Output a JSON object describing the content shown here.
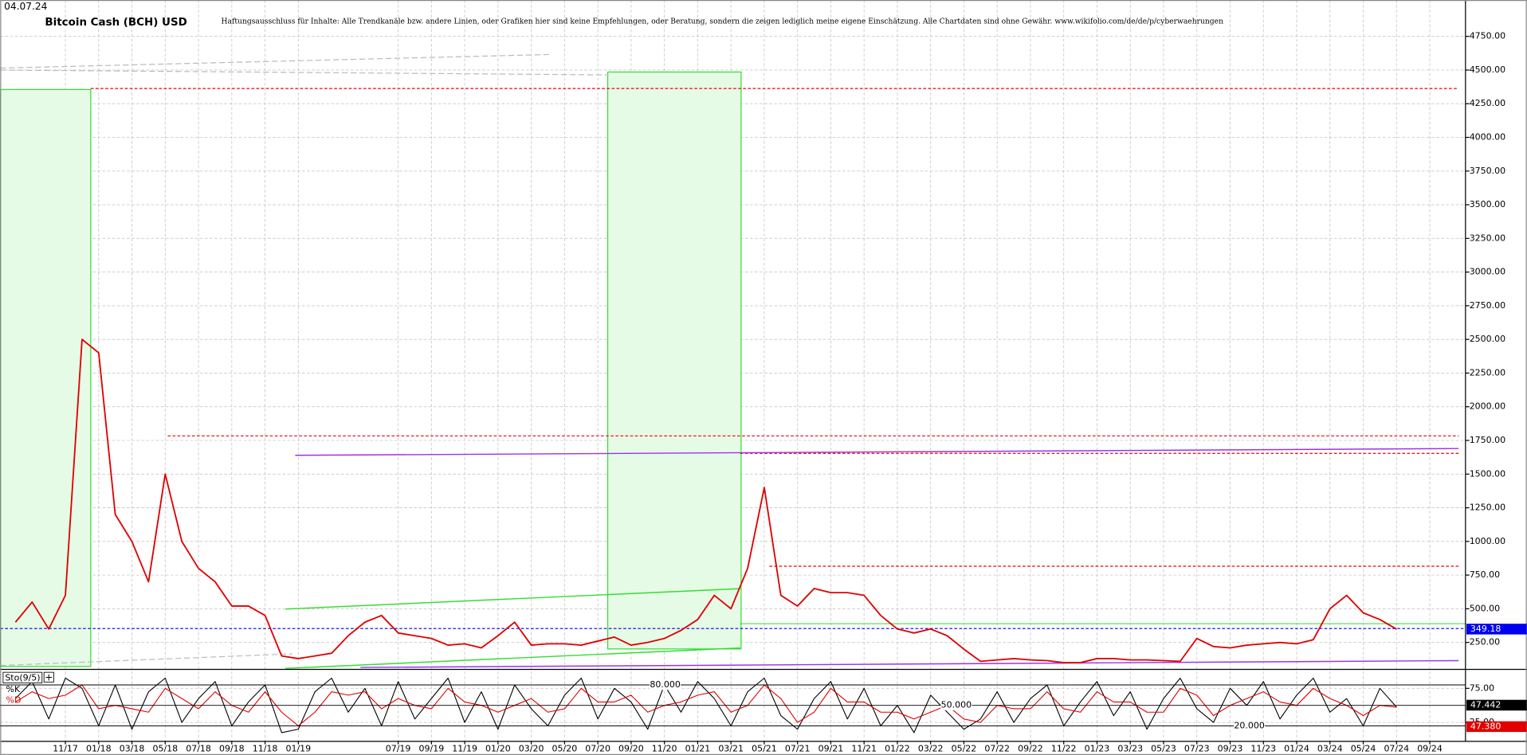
{
  "chart_data": [
    {
      "type": "line",
      "title": "Bitcoin Cash (BCH) USD",
      "subtitle": "04.07.24",
      "note": "Haftungsausschluss für Inhalte: Alle Trendkanäle bzw. andere Linien, oder Grafiken hier sind keine Empfehlungen, oder Beratung, sondern die zeigen lediglich meine eigene Einschätzung. Alle Chartdaten sind ohne Gewähr.  www.wikifolio.com/de/de/p/cyberwaehrungen",
      "categories": [
        null,
        null,
        null,
        "11/17",
        null,
        "01/18",
        null,
        "03/18",
        null,
        "05/18",
        null,
        "07/18",
        null,
        "09/18",
        null,
        "11/18",
        null,
        "01/19",
        null,
        null,
        null,
        null,
        null,
        "07/19",
        null,
        "09/19",
        null,
        "11/19",
        null,
        "01/20",
        null,
        "03/20",
        null,
        "05/20",
        null,
        "07/20",
        null,
        "09/20",
        null,
        "11/20",
        null,
        "01/21",
        null,
        "03/21",
        null,
        "05/21",
        null,
        "07/21",
        null,
        "09/21",
        null,
        "11/21",
        null,
        "01/22",
        null,
        "03/22",
        null,
        "05/22",
        null,
        "07/22",
        null,
        "09/22",
        null,
        "11/22",
        null,
        "01/23",
        null,
        "03/23",
        null,
        "05/23",
        null,
        "07/23",
        null,
        "09/23",
        null,
        "11/23",
        null,
        "01/24",
        null,
        "03/24",
        null,
        "05/24",
        null,
        "07/24",
        null,
        "09/24"
      ],
      "series": [
        {
          "color": "#e00000",
          "values": [
            400,
            550,
            350,
            600,
            2500,
            2400,
            1200,
            1000,
            700,
            1500,
            1000,
            800,
            700,
            520,
            520,
            450,
            150,
            130,
            150,
            170,
            300,
            400,
            450,
            320,
            300,
            280,
            230,
            240,
            210,
            300,
            400,
            230,
            240,
            240,
            230,
            260,
            290,
            230,
            250,
            280,
            340,
            420,
            600,
            500,
            800,
            1400,
            600,
            520,
            650,
            620,
            620,
            600,
            450,
            350,
            320,
            350,
            300,
            200,
            110,
            120,
            130,
            120,
            115,
            100,
            100,
            130,
            130,
            120,
            120,
            115,
            110,
            280,
            220,
            210,
            230,
            240,
            250,
            240,
            270,
            500,
            600,
            470,
            420,
            349.18,
            null,
            null
          ],
          "value_labels": [
            null,
            null,
            null,
            null,
            null,
            null,
            null,
            null,
            null,
            null,
            null,
            null,
            null,
            null,
            null,
            null,
            null,
            null,
            null,
            null,
            null,
            null,
            null,
            null,
            null,
            null,
            null,
            null,
            null,
            null,
            null,
            null,
            null,
            null,
            null,
            null,
            null,
            null,
            null,
            null,
            null,
            null,
            null,
            null,
            null,
            null,
            null,
            null,
            null,
            null,
            null,
            null,
            null,
            null,
            null,
            null,
            null,
            null,
            null,
            null,
            null,
            null,
            null,
            null,
            null,
            null,
            null,
            null,
            null,
            null,
            null,
            null,
            null,
            null,
            null,
            null,
            null,
            null,
            null,
            null,
            null,
            null,
            null,
            "349.18",
            null,
            null
          ]
        }
      ],
      "ylim": [
        50,
        5020
      ],
      "yticks": [
        {
          "value": 250,
          "label": "250.00"
        },
        {
          "value": 500,
          "label": "500.00"
        },
        {
          "value": 750,
          "label": "750.00"
        },
        {
          "value": 1000,
          "label": "1000.00"
        },
        {
          "value": 1250,
          "label": "1250.00"
        },
        {
          "value": 1500,
          "label": "1500.00"
        },
        {
          "value": 1750,
          "label": "1750.00"
        },
        {
          "value": 2000,
          "label": "2000.00"
        },
        {
          "value": 2250,
          "label": "2250.00"
        },
        {
          "value": 2500,
          "label": "2500.00"
        },
        {
          "value": 2750,
          "label": "2750.00"
        },
        {
          "value": 3000,
          "label": "3000.00"
        },
        {
          "value": 3250,
          "label": "3250.00"
        },
        {
          "value": 3500,
          "label": "3500.00"
        },
        {
          "value": 3750,
          "label": "3750.00"
        },
        {
          "value": 4000,
          "label": "4000.00"
        },
        {
          "value": 4250,
          "label": "4250.00"
        },
        {
          "value": 4500,
          "label": "4500.00"
        },
        {
          "value": 4750,
          "label": "4750.00"
        }
      ],
      "grid": true
    },
    {
      "type": "line",
      "title": "Sto(9/5)",
      "series": [
        {
          "name": "%K",
          "color": "#000000",
          "values": [
            60,
            85,
            30,
            90,
            75,
            20,
            80,
            15,
            70,
            90,
            25,
            60,
            85,
            20,
            55,
            80,
            10,
            15,
            70,
            90,
            40,
            75,
            20,
            85,
            30,
            60,
            90,
            25,
            70,
            15,
            80,
            45,
            20,
            65,
            90,
            30,
            75,
            55,
            15,
            80,
            40,
            85,
            60,
            20,
            70,
            90,
            35,
            15,
            60,
            85,
            30,
            75,
            20,
            50,
            10,
            65,
            40,
            15,
            30,
            70,
            25,
            60,
            80,
            20,
            55,
            85,
            35,
            70,
            15,
            60,
            90,
            45,
            25,
            75,
            50,
            85,
            30,
            65,
            90,
            40,
            60,
            20,
            75,
            47.442,
            null,
            null
          ]
        },
        {
          "name": "%D",
          "color": "#e00000",
          "values": [
            55,
            70,
            60,
            65,
            80,
            45,
            50,
            45,
            40,
            75,
            60,
            45,
            70,
            50,
            40,
            70,
            40,
            20,
            40,
            70,
            65,
            70,
            45,
            60,
            50,
            45,
            75,
            55,
            50,
            40,
            50,
            60,
            40,
            45,
            75,
            55,
            55,
            65,
            40,
            50,
            55,
            65,
            70,
            40,
            50,
            80,
            60,
            25,
            40,
            75,
            55,
            55,
            40,
            40,
            30,
            40,
            50,
            30,
            25,
            50,
            45,
            45,
            70,
            45,
            40,
            70,
            55,
            55,
            40,
            40,
            75,
            65,
            35,
            50,
            60,
            70,
            55,
            50,
            75,
            60,
            50,
            35,
            50,
            47.38,
            null,
            null
          ],
          "value_labels": [
            null,
            null,
            null,
            null,
            null,
            null,
            null,
            null,
            null,
            null,
            null,
            null,
            null,
            null,
            null,
            null,
            null,
            null,
            null,
            null,
            null,
            null,
            null,
            null,
            null,
            null,
            null,
            null,
            null,
            null,
            null,
            null,
            null,
            null,
            null,
            null,
            null,
            null,
            null,
            null,
            null,
            null,
            null,
            null,
            null,
            null,
            null,
            null,
            null,
            null,
            null,
            null,
            null,
            null,
            null,
            null,
            null,
            null,
            null,
            null,
            null,
            null,
            null,
            null,
            null,
            null,
            null,
            null,
            null,
            null,
            null,
            null,
            null,
            null,
            null,
            null,
            null,
            null,
            null,
            null,
            null,
            null,
            null,
            "47.380",
            null,
            null
          ]
        }
      ],
      "ylim": [
        0,
        100
      ],
      "yticks": [
        {
          "value": 25,
          "label": "25.00"
        },
        {
          "value": 75,
          "label": "75.00"
        }
      ],
      "levels": [
        {
          "value": 80,
          "label": "80.000"
        },
        {
          "value": 50,
          "label": "50.000"
        },
        {
          "value": 20,
          "label": "20.000"
        }
      ]
    }
  ]
}
